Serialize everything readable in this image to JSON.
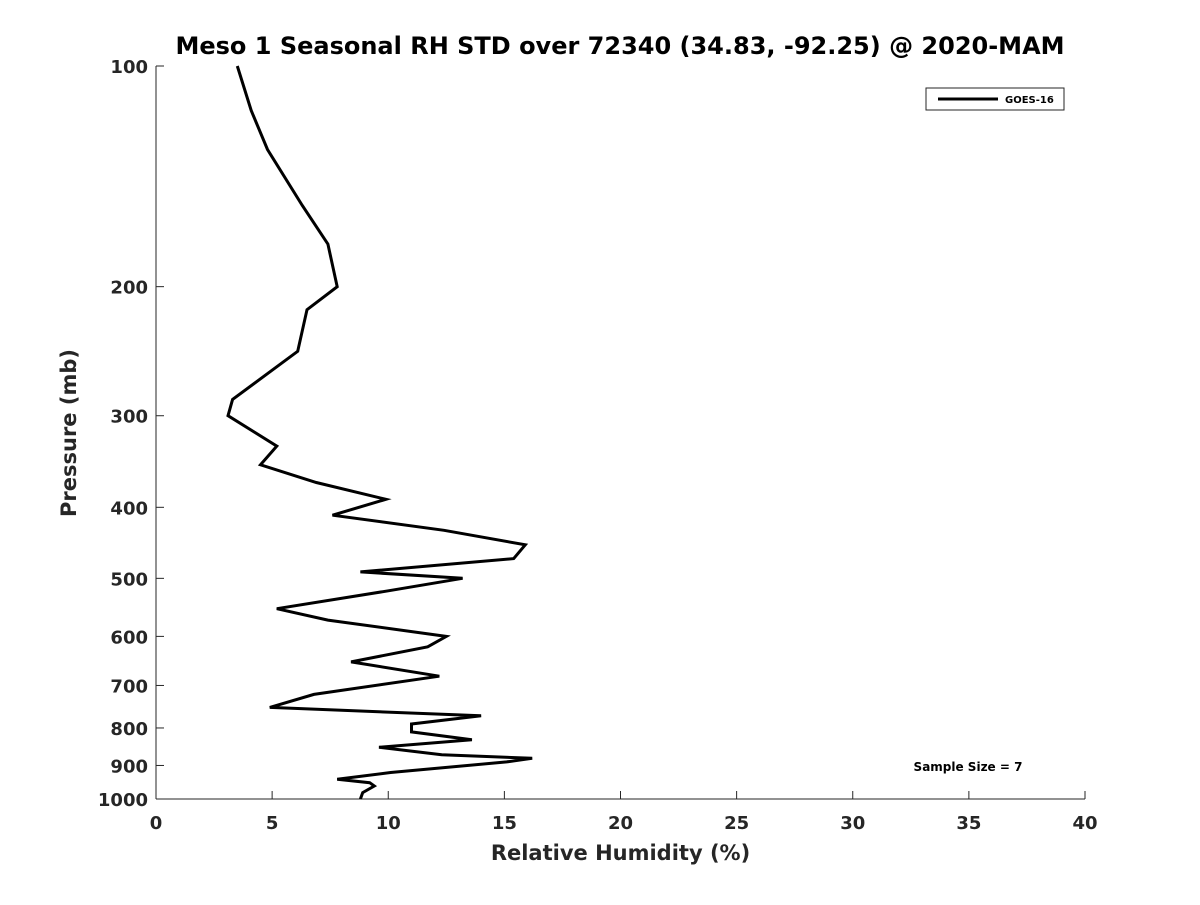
{
  "chart_data": {
    "type": "line",
    "title": "Meso 1 Seasonal RH STD over 72340 (34.83, -92.25) @ 2020-MAM",
    "xlabel": "Relative Humidity (%)",
    "ylabel": "Pressure (mb)",
    "xlim": [
      0,
      40
    ],
    "ylim": [
      100,
      1000
    ],
    "y_scale": "log",
    "y_reversed": true,
    "grid": false,
    "legend_position": "top-right",
    "xticks": [
      "0",
      "5",
      "10",
      "15",
      "20",
      "25",
      "30",
      "35",
      "40"
    ],
    "yticks": [
      "100",
      "200",
      "300",
      "400",
      "500",
      "600",
      "700",
      "800",
      "900",
      "1000"
    ],
    "annotation": "Sample Size = 7",
    "series": [
      {
        "name": "GOES-16",
        "color": "#000000",
        "x": [
          3.5,
          4.1,
          4.8,
          6.3,
          7.4,
          7.8,
          6.5,
          6.1,
          3.3,
          3.1,
          5.2,
          4.5,
          6.9,
          9.9,
          7.6,
          12.4,
          15.9,
          15.4,
          8.8,
          13.2,
          10.0,
          5.2,
          7.4,
          12.5,
          11.7,
          8.4,
          12.2,
          6.8,
          4.9,
          14.0,
          11.0,
          11.0,
          13.6,
          9.6,
          12.3,
          16.2,
          15.1,
          10.1,
          7.8,
          9.2,
          9.4,
          8.9,
          8.8
        ],
        "y": [
          100,
          115,
          130,
          155,
          175,
          200,
          215,
          245,
          285,
          300,
          330,
          350,
          370,
          390,
          410,
          430,
          450,
          470,
          490,
          500,
          520,
          550,
          570,
          600,
          620,
          650,
          680,
          720,
          750,
          770,
          790,
          810,
          830,
          850,
          870,
          880,
          890,
          920,
          940,
          950,
          960,
          980,
          1000
        ]
      }
    ]
  }
}
